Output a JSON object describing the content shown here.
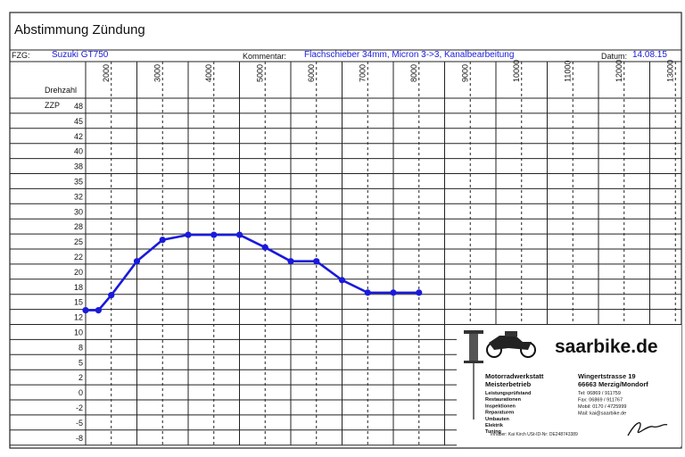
{
  "header": {
    "title": "Abstimmung Zündung",
    "fzg_label": "FZG:",
    "fzg_value": "Suzuki GT750",
    "kommentar_label": "Kommentar:",
    "kommentar_value": "Flachschieber 34mm, Micron 3->3, Kanalbearbeitung",
    "datum_label": "Datum:",
    "datum_value": "14.08.15"
  },
  "table": {
    "rpm_label": "Drehzahl",
    "zzp_label": "ZZP",
    "x_ticks": [
      "2000",
      "3000",
      "4000",
      "5000",
      "6000",
      "7000",
      "8000",
      "9000",
      "10000",
      "11000",
      "12000",
      "13000"
    ],
    "y_ticks": [
      "48",
      "45",
      "42",
      "40",
      "38",
      "35",
      "32",
      "30",
      "28",
      "25",
      "22",
      "20",
      "18",
      "15",
      "12",
      "10",
      "8",
      "5",
      "2",
      "0",
      "-2",
      "-5",
      "-8"
    ]
  },
  "chart_data": {
    "type": "line",
    "title": "Abstimmung Zündung",
    "xlabel": "Drehzahl",
    "ylabel": "ZZP",
    "x_ticks": [
      2000,
      3000,
      4000,
      5000,
      6000,
      7000,
      8000,
      9000,
      10000,
      11000,
      12000,
      13000
    ],
    "y_ticks": [
      48,
      45,
      42,
      40,
      38,
      35,
      32,
      30,
      28,
      25,
      22,
      20,
      18,
      15,
      12,
      10,
      8,
      5,
      2,
      0,
      -2,
      -5,
      -8
    ],
    "series": [
      {
        "color": "#1a1adb",
        "points": [
          {
            "x": 1500,
            "y": 13.5
          },
          {
            "x": 1750,
            "y": 13.5
          },
          {
            "x": 2000,
            "y": 16.5
          },
          {
            "x": 2500,
            "y": 21.5
          },
          {
            "x": 3000,
            "y": 25.5
          },
          {
            "x": 3500,
            "y": 26.5
          },
          {
            "x": 4000,
            "y": 26.5
          },
          {
            "x": 4500,
            "y": 26.5
          },
          {
            "x": 5000,
            "y": 24
          },
          {
            "x": 5500,
            "y": 21.5
          },
          {
            "x": 6000,
            "y": 21.5
          },
          {
            "x": 6500,
            "y": 19
          },
          {
            "x": 7000,
            "y": 17
          },
          {
            "x": 7500,
            "y": 17
          },
          {
            "x": 8000,
            "y": 17
          }
        ]
      }
    ],
    "grid": true
  },
  "stamp": {
    "brand": "saarbike.de",
    "left_lines": [
      "Motorradwerkstatt",
      "Meisterbetrieb",
      "Leistungsprüfstand",
      "Restaurationen",
      "Inspektionen",
      "Reparaturen",
      "Umbauten",
      "Elektrik",
      "Tuning"
    ],
    "right_lines": [
      "Wingertstrasse 19",
      "66663 Merzig/Mondorf",
      "Tel:    06869 / 911759",
      "Fax:    06869 / 911767",
      "Mobil: 0170 / 4725999",
      "Mail: kai@saarbike.de"
    ],
    "footer": "Inhaber: Kai Kirch   USt-ID-Nr: DE248743389"
  }
}
